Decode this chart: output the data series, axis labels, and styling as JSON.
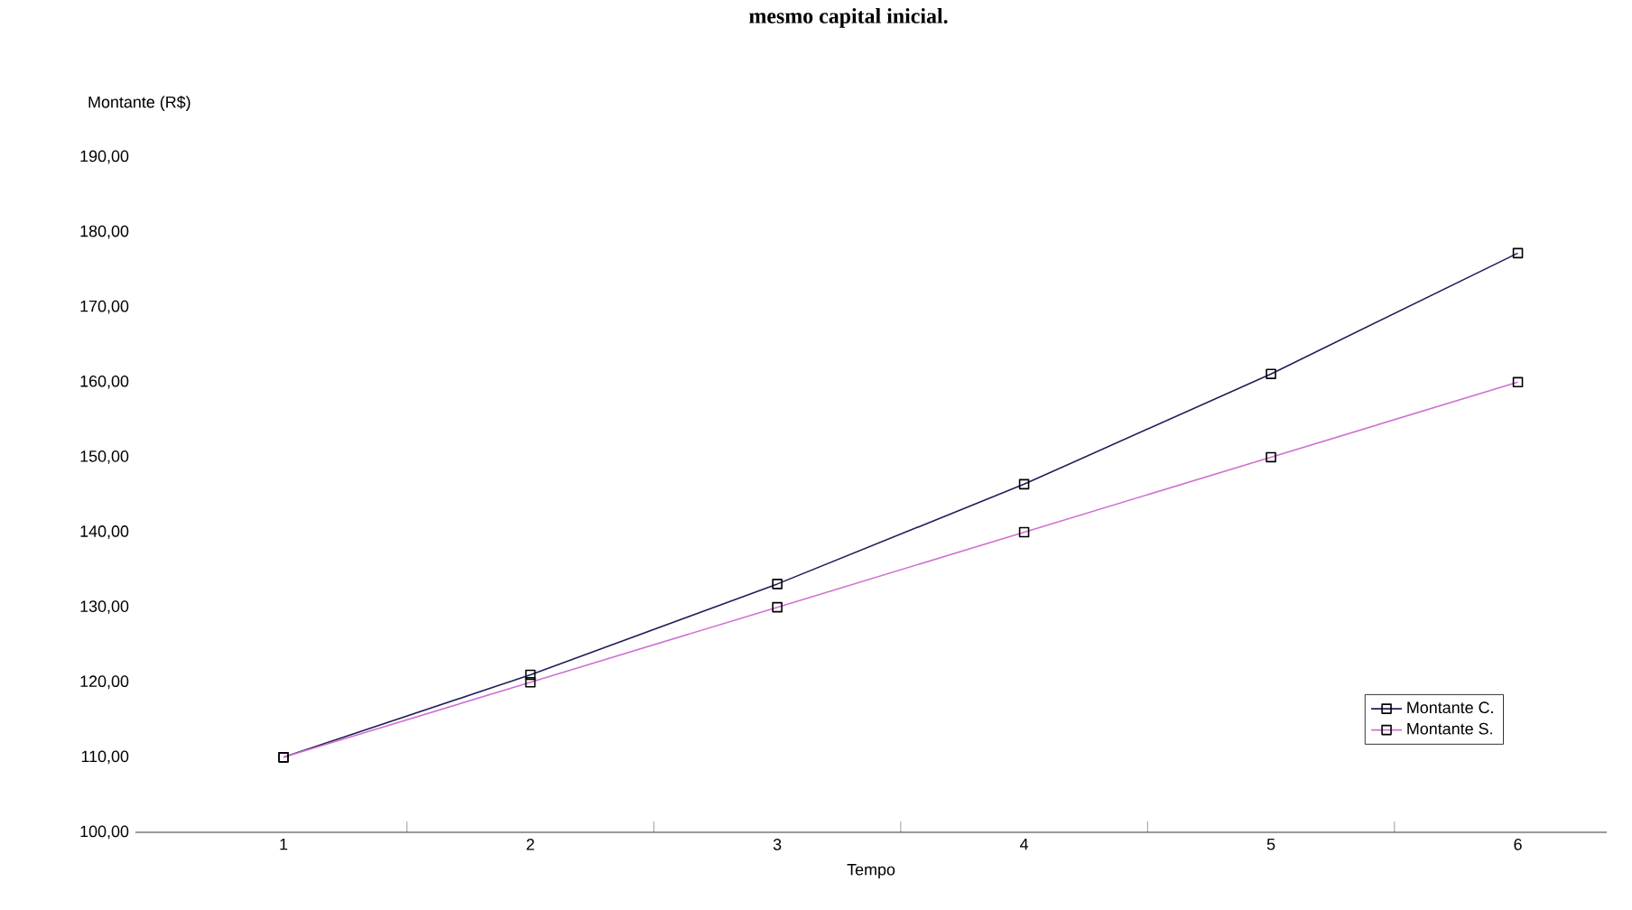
{
  "chart_data": {
    "type": "line",
    "title": "mesmo capital inicial.",
    "ylabel": "Montante (R$)",
    "xlabel": "Tempo",
    "categories": [
      "1",
      "2",
      "3",
      "4",
      "5",
      "6"
    ],
    "series": [
      {
        "name": "Montante C.",
        "color": "#1f1f5a",
        "values": [
          110,
          121,
          133.1,
          146.4,
          161.1,
          177.2
        ]
      },
      {
        "name": "Montante S.",
        "color": "#d070d0",
        "values": [
          110,
          120,
          130,
          140,
          150,
          160
        ]
      }
    ],
    "ylim": [
      100,
      190
    ],
    "yticks": [
      {
        "value": 100,
        "label": "100,00"
      },
      {
        "value": 110,
        "label": "110,00"
      },
      {
        "value": 120,
        "label": "120,00"
      },
      {
        "value": 130,
        "label": "130,00"
      },
      {
        "value": 140,
        "label": "140,00"
      },
      {
        "value": 150,
        "label": "150,00"
      },
      {
        "value": 160,
        "label": "160,00"
      },
      {
        "value": 170,
        "label": "170,00"
      },
      {
        "value": 180,
        "label": "180,00"
      },
      {
        "value": 190,
        "label": "190,00"
      }
    ],
    "marker": "square",
    "line_style": "solid",
    "legend": "bottom right",
    "grid": false
  }
}
